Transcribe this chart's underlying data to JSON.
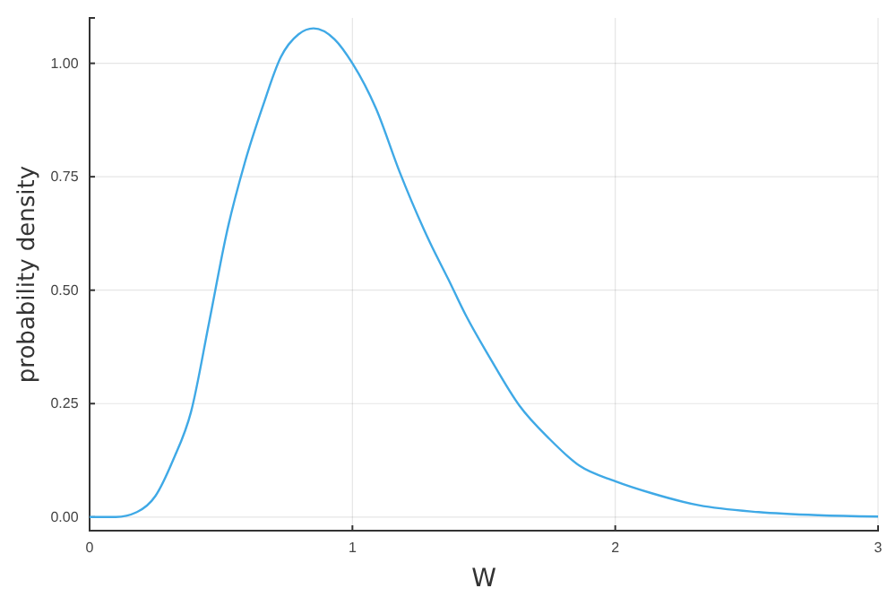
{
  "chart_data": {
    "type": "line",
    "xlabel": "W",
    "ylabel": "probability density",
    "x": [
      0,
      0.1,
      0.18,
      0.25,
      0.318,
      0.386,
      0.455,
      0.523,
      0.59,
      0.66,
      0.727,
      0.795,
      0.852,
      0.932,
      1.0,
      1.09,
      1.18,
      1.295,
      1.364,
      1.432,
      1.523,
      1.636,
      1.75,
      1.864,
      2.0,
      2.136,
      2.318,
      2.545,
      2.773,
      3.0
    ],
    "series": [
      {
        "color": "#3fa9e6",
        "values": [
          0,
          0,
          0.011,
          0.046,
          0.126,
          0.232,
          0.43,
          0.63,
          0.78,
          0.907,
          1.013,
          1.064,
          1.077,
          1.053,
          1.0,
          0.9,
          0.76,
          0.605,
          0.525,
          0.444,
          0.351,
          0.245,
          0.172,
          0.113,
          0.079,
          0.053,
          0.026,
          0.011,
          0.004,
          0.001
        ]
      }
    ],
    "xlim": [
      0,
      3
    ],
    "xticks": [
      0,
      1,
      2,
      3
    ],
    "ylim": [
      -0.03,
      1.1
    ],
    "yticks": [
      {
        "value": 0,
        "label": "0.00"
      },
      {
        "value": 0.25,
        "label": "0.25"
      },
      {
        "value": 0.5,
        "label": "0.50"
      },
      {
        "value": 0.75,
        "label": "0.75"
      },
      {
        "value": 1,
        "label": "1.00"
      }
    ],
    "grid": true,
    "marker": "none",
    "line_style": "solid"
  }
}
